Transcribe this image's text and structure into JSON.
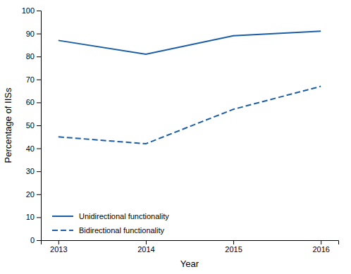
{
  "chart_data": {
    "type": "line",
    "x": [
      2013,
      2014,
      2015,
      2016
    ],
    "series": [
      {
        "name": "Unidirectional functionality",
        "color": "#1B5EA6",
        "line_style": "solid",
        "values": [
          87,
          81,
          89,
          91
        ]
      },
      {
        "name": "Bidirectional functionality",
        "color": "#1B5EA6",
        "line_style": "dashed",
        "values": [
          45,
          42,
          57,
          67
        ]
      }
    ],
    "xlabel": "Year",
    "ylabel": "Percentage of IISs",
    "xlim": [
      2012.8,
      2016.2
    ],
    "xticks": [
      2013,
      2014,
      2015,
      2016
    ],
    "ylim": [
      0,
      100
    ],
    "yticks": [
      0,
      10,
      20,
      30,
      40,
      50,
      60,
      70,
      80,
      90,
      100
    ],
    "grid": false,
    "legend": "lower left"
  }
}
